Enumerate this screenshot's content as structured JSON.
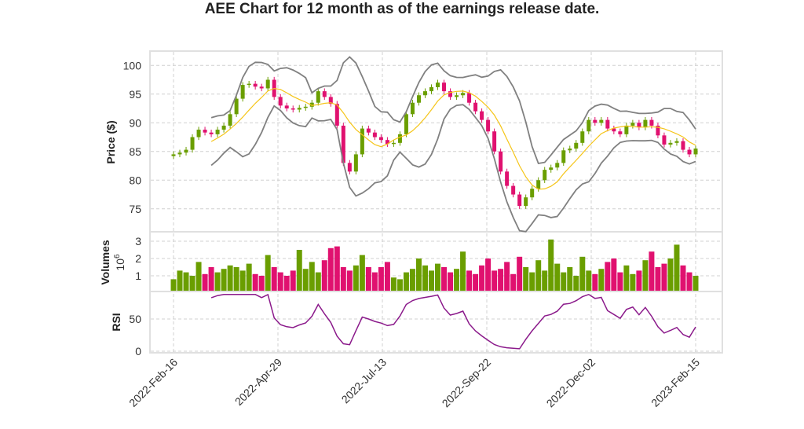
{
  "chart_data": {
    "type": "candlestick",
    "title": "AEE Chart for 12 month as of the earnings release date.",
    "panels": {
      "price": {
        "ylabel": "Price ($)",
        "ylim": [
          71,
          102.5
        ],
        "yticks": [
          75,
          80,
          85,
          90,
          95,
          100
        ]
      },
      "volume": {
        "ylabel": "Volumes",
        "scale_label": "10^6",
        "scale_base": "10",
        "scale_exp": "6",
        "ylim": [
          0,
          3.4
        ],
        "yticks": [
          1,
          2,
          3
        ]
      },
      "rsi": {
        "ylabel": "RSI",
        "ylim": [
          0,
          90
        ],
        "yticks": [
          0,
          50
        ]
      }
    },
    "xticks": [
      "2022-Feb-16",
      "2022-Apr-29",
      "2022-Jul-13",
      "2022-Sep-22",
      "2022-Dec-02",
      "2023-Feb-15"
    ],
    "close": [
      84.5,
      84.8,
      85.3,
      87.5,
      88.8,
      88.3,
      88.0,
      88.8,
      89.5,
      91.5,
      94.2,
      96.6,
      96.8,
      96.3,
      96.0,
      97.5,
      94.5,
      93.0,
      92.5,
      92.3,
      92.6,
      92.8,
      93.5,
      95.5,
      94.5,
      93.3,
      89.5,
      83.0,
      81.5,
      84.5,
      89.0,
      88.3,
      87.5,
      87.0,
      86.3,
      86.5,
      88.0,
      91.5,
      93.5,
      94.8,
      95.5,
      96.2,
      97.0,
      95.5,
      94.5,
      94.8,
      95.2,
      93.5,
      92.0,
      90.5,
      88.5,
      85.0,
      81.5,
      79.0,
      77.5,
      75.5,
      77.0,
      78.5,
      80.0,
      81.8,
      82.2,
      83.0,
      85.2,
      85.5,
      86.5,
      88.5,
      90.5,
      90.0,
      90.5,
      89.0,
      88.5,
      88.0,
      89.5,
      90.0,
      89.2,
      90.5,
      89.5,
      87.8,
      86.2,
      86.5,
      86.8,
      85.3,
      84.5,
      85.5
    ],
    "volume": [
      0.8,
      1.3,
      1.2,
      1.0,
      1.8,
      1.1,
      1.5,
      1.2,
      1.4,
      1.6,
      1.5,
      1.3,
      1.7,
      1.1,
      1.0,
      2.2,
      1.5,
      1.2,
      1.0,
      1.3,
      2.5,
      1.4,
      1.8,
      1.2,
      1.9,
      2.6,
      2.7,
      1.5,
      1.3,
      1.6,
      2.2,
      1.5,
      1.2,
      1.5,
      1.8,
      0.9,
      0.8,
      1.2,
      1.4,
      2.0,
      1.6,
      1.3,
      1.7,
      1.5,
      1.2,
      1.4,
      2.4,
      1.3,
      1.1,
      1.6,
      2.0,
      1.3,
      1.4,
      1.8,
      1.1,
      2.1,
      1.5,
      1.2,
      1.9,
      1.3,
      3.1,
      1.7,
      1.2,
      1.5,
      1.0,
      2.1,
      1.3,
      1.1,
      1.4,
      1.8,
      2.0,
      1.2,
      1.6,
      1.1,
      1.3,
      1.9,
      2.4,
      1.5,
      1.7,
      2.0,
      2.8,
      1.6,
      1.2,
      1.0
    ],
    "indicators": {
      "sma_color": "#f5c518",
      "band_color": "#808080",
      "rsi_color": "#8b1a8b",
      "up_color": "#6a9e00",
      "down_color": "#e0116f"
    },
    "grid": true
  }
}
